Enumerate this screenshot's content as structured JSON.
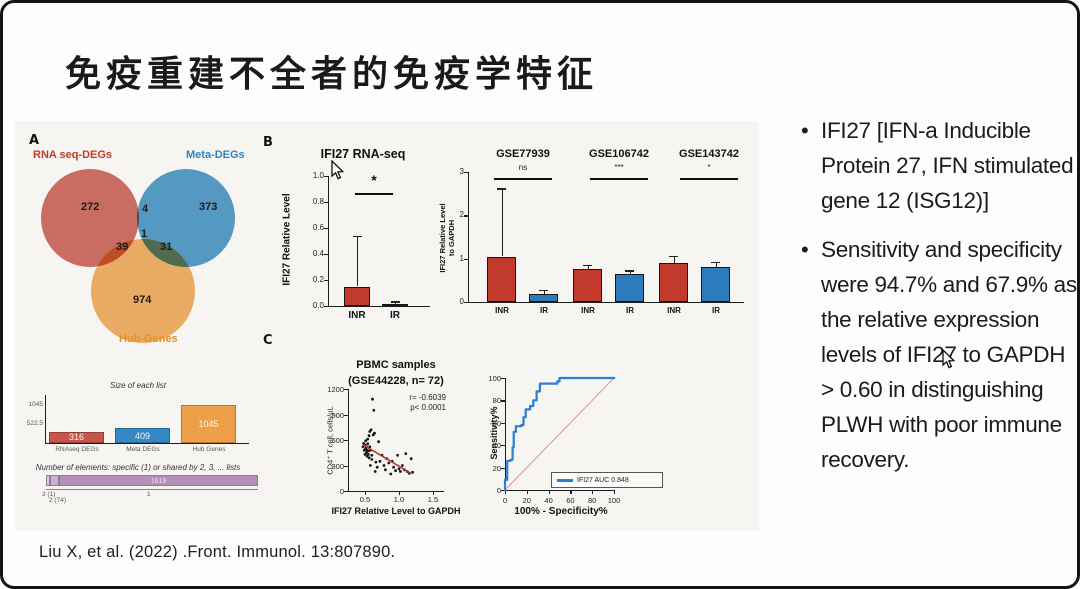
{
  "slide": {
    "title": "免疫重建不全者的免疫学特征",
    "citation": "Liu X, et al. (2022) .Front. Immunol. 13:807890.",
    "bullet_1": "IFI27 [IFN-a Inducible Protein 27, IFN stimulated gene 12 (ISG12)]",
    "bullet_2": "Sensitivity and specificity were 94.7% and 67.9% as the relative expression levels of IFI27 to GAPDH > 0.60 in distinguishing PLWH with poor immune recovery."
  },
  "panels": {
    "a": "A",
    "b": "B",
    "c": "C"
  },
  "colors": {
    "inr_red": "#c13a2c",
    "ir_blue": "#2b7bbd",
    "ir_dark": "#3f3f3f",
    "venn_red": "#c9584c",
    "venn_blue": "#3b8ec6",
    "venn_orange": "#f0a44e",
    "purple": "#b48fb8",
    "roc_blue": "#2a7fd4",
    "diag_red": "#e08a8a",
    "trend_red": "#b03a30"
  },
  "venn": {
    "set_labels": [
      {
        "text": "RNA seq-DEGs",
        "color": "#c0392b"
      },
      {
        "text": "Meta-DEGs",
        "color": "#2e86c1"
      },
      {
        "text": "Hub-Genes",
        "color": "#e0922f"
      }
    ],
    "counts": {
      "rna_only": "272",
      "meta_only": "373",
      "hub_only": "974",
      "rna_meta": "4",
      "rna_hub": "39",
      "meta_hub": "31",
      "all": "1"
    }
  },
  "chart_data": [
    {
      "id": "size_of_each_list",
      "type": "bar",
      "title": "Size of each list",
      "categories": [
        "RNAseq DEGs",
        "Meta DEGs",
        "Hub Genes"
      ],
      "values": [
        316,
        409,
        1045
      ],
      "colors": [
        "#c9544a",
        "#3489c4",
        "#eda049"
      ],
      "ylim": [
        0,
        1045
      ],
      "yticks": [
        "1045",
        "522.5"
      ]
    },
    {
      "id": "number_of_elements",
      "type": "bar",
      "title": "Number of elements: specific (1) or shared by 2, 3, ... lists",
      "segments": [
        {
          "label": "3 (1)",
          "value": 1
        },
        {
          "label": "2 (74)",
          "value": 74
        },
        {
          "label": "1",
          "value": 1619
        }
      ],
      "bar_text": "1619"
    },
    {
      "id": "ifi27_rnaseq",
      "type": "bar",
      "title": "IFI27 RNA-seq",
      "ylabel": "IFI27 Relative Level",
      "categories": [
        "INR",
        "IR"
      ],
      "values": [
        0.15,
        0.012
      ],
      "err_tops": [
        0.54,
        0.035
      ],
      "significance": "*",
      "ylim": [
        0,
        1.0
      ],
      "yticks": [
        "1.0",
        "0.8",
        "0.6",
        "0.4",
        "0.2",
        "0.0"
      ]
    },
    {
      "id": "gse_cohorts",
      "type": "bar",
      "ylabel": "IFI27 Relative Level\nto GAPDH",
      "ylim": [
        0,
        3
      ],
      "yticks": [
        "3",
        "2",
        "1",
        "0"
      ],
      "categories": [
        "INR",
        "IR"
      ],
      "groups": [
        {
          "title": "GSE77939",
          "sig": "ns",
          "values": [
            1.05,
            0.18
          ],
          "err_tops": [
            2.62,
            0.28
          ]
        },
        {
          "title": "GSE106742",
          "sig": "***",
          "values": [
            0.76,
            0.64
          ],
          "err_tops": [
            0.85,
            0.73
          ]
        },
        {
          "title": "GSE143742",
          "sig": "*",
          "values": [
            0.9,
            0.8
          ],
          "err_tops": [
            1.07,
            0.93
          ]
        }
      ]
    },
    {
      "id": "pbmc_scatter",
      "type": "scatter",
      "title": "PBMC samples",
      "subtitle": "(GSE44228, n= 72)",
      "xlabel": "IFI27 Relative Level to GAPDH",
      "ylabel": "CD4⁺ T cell, cells/μL",
      "r_text": "r= -0.6039",
      "p_text": "p< 0.0001",
      "xlim": [
        0.3,
        1.5
      ],
      "ylim": [
        0,
        1200
      ],
      "xticks": [
        "0.5",
        "1.0",
        "1.5"
      ],
      "yticks": [
        "0",
        "300",
        "600",
        "900",
        "1200"
      ],
      "trend": [
        [
          0.48,
          540
        ],
        [
          1.18,
          205
        ]
      ],
      "points": [
        [
          0.47,
          520
        ],
        [
          0.48,
          560
        ],
        [
          0.49,
          480
        ],
        [
          0.5,
          540
        ],
        [
          0.5,
          430
        ],
        [
          0.51,
          500
        ],
        [
          0.51,
          590
        ],
        [
          0.52,
          450
        ],
        [
          0.52,
          520
        ],
        [
          0.53,
          480
        ],
        [
          0.53,
          410
        ],
        [
          0.54,
          555
        ],
        [
          0.54,
          610
        ],
        [
          0.55,
          470
        ],
        [
          0.55,
          430
        ],
        [
          0.56,
          650
        ],
        [
          0.56,
          390
        ],
        [
          0.57,
          700
        ],
        [
          0.57,
          520
        ],
        [
          0.58,
          480
        ],
        [
          0.58,
          300
        ],
        [
          0.59,
          720
        ],
        [
          0.6,
          420
        ],
        [
          0.6,
          370
        ],
        [
          0.61,
          1080
        ],
        [
          0.62,
          660
        ],
        [
          0.63,
          950
        ],
        [
          0.64,
          680
        ],
        [
          0.65,
          230
        ],
        [
          0.66,
          340
        ],
        [
          0.68,
          280
        ],
        [
          0.7,
          580
        ],
        [
          0.72,
          350
        ],
        [
          0.75,
          420
        ],
        [
          0.78,
          300
        ],
        [
          0.8,
          250
        ],
        [
          0.82,
          380
        ],
        [
          0.85,
          330
        ],
        [
          0.88,
          200
        ],
        [
          0.9,
          350
        ],
        [
          0.92,
          280
        ],
        [
          0.95,
          240
        ],
        [
          0.98,
          420
        ],
        [
          1.0,
          260
        ],
        [
          1.02,
          230
        ],
        [
          1.05,
          300
        ],
        [
          1.08,
          250
        ],
        [
          1.1,
          440
        ],
        [
          1.12,
          230
        ],
        [
          1.15,
          210
        ],
        [
          1.18,
          380
        ],
        [
          1.2,
          220
        ]
      ]
    },
    {
      "id": "roc",
      "type": "line",
      "xlabel": "100% - Specificity%",
      "ylabel": "Sensitivity%",
      "legend": "IFI27 AUC 0.848",
      "xlim": [
        0,
        100
      ],
      "ylim": [
        0,
        100
      ],
      "xticks": [
        "0",
        "20",
        "40",
        "60",
        "80",
        "100"
      ],
      "yticks": [
        "0",
        "20",
        "40",
        "60",
        "80",
        "100"
      ],
      "curve": [
        [
          0,
          0
        ],
        [
          0,
          9
        ],
        [
          2,
          9
        ],
        [
          2,
          26
        ],
        [
          5,
          26
        ],
        [
          5,
          27
        ],
        [
          7,
          27
        ],
        [
          7,
          38
        ],
        [
          8,
          38
        ],
        [
          8,
          52
        ],
        [
          10,
          52
        ],
        [
          10,
          57
        ],
        [
          15,
          57
        ],
        [
          15,
          58
        ],
        [
          17,
          58
        ],
        [
          17,
          65
        ],
        [
          19,
          65
        ],
        [
          19,
          72
        ],
        [
          23,
          72
        ],
        [
          23,
          75
        ],
        [
          26,
          75
        ],
        [
          26,
          80
        ],
        [
          29,
          80
        ],
        [
          29,
          88
        ],
        [
          32,
          88
        ],
        [
          32,
          95
        ],
        [
          48,
          95
        ],
        [
          48,
          97
        ],
        [
          50,
          97
        ],
        [
          50,
          100
        ],
        [
          100,
          100
        ]
      ]
    }
  ]
}
